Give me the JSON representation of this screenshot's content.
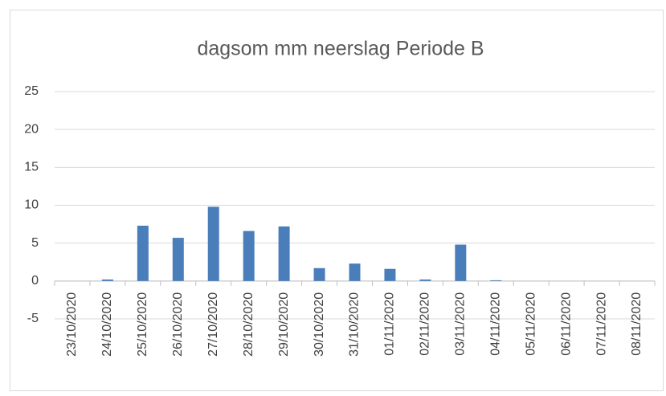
{
  "chart_data": {
    "type": "bar",
    "title": "dagsom mm neerslag Periode B",
    "categories": [
      "23/10/2020",
      "24/10/2020",
      "25/10/2020",
      "26/10/2020",
      "27/10/2020",
      "28/10/2020",
      "29/10/2020",
      "30/10/2020",
      "31/10/2020",
      "01/11/2020",
      "02/11/2020",
      "03/11/2020",
      "04/11/2020",
      "05/11/2020",
      "06/11/2020",
      "07/11/2020",
      "08/11/2020"
    ],
    "values": [
      0,
      0.2,
      7.3,
      5.7,
      9.8,
      6.6,
      7.2,
      1.7,
      2.3,
      1.6,
      0.2,
      4.8,
      0.1,
      0,
      0,
      0,
      0
    ],
    "color": "#4a7ebb",
    "ylim": [
      -5,
      25
    ],
    "yticks": [
      -5,
      0,
      5,
      10,
      15,
      20,
      25
    ],
    "grid": true
  }
}
